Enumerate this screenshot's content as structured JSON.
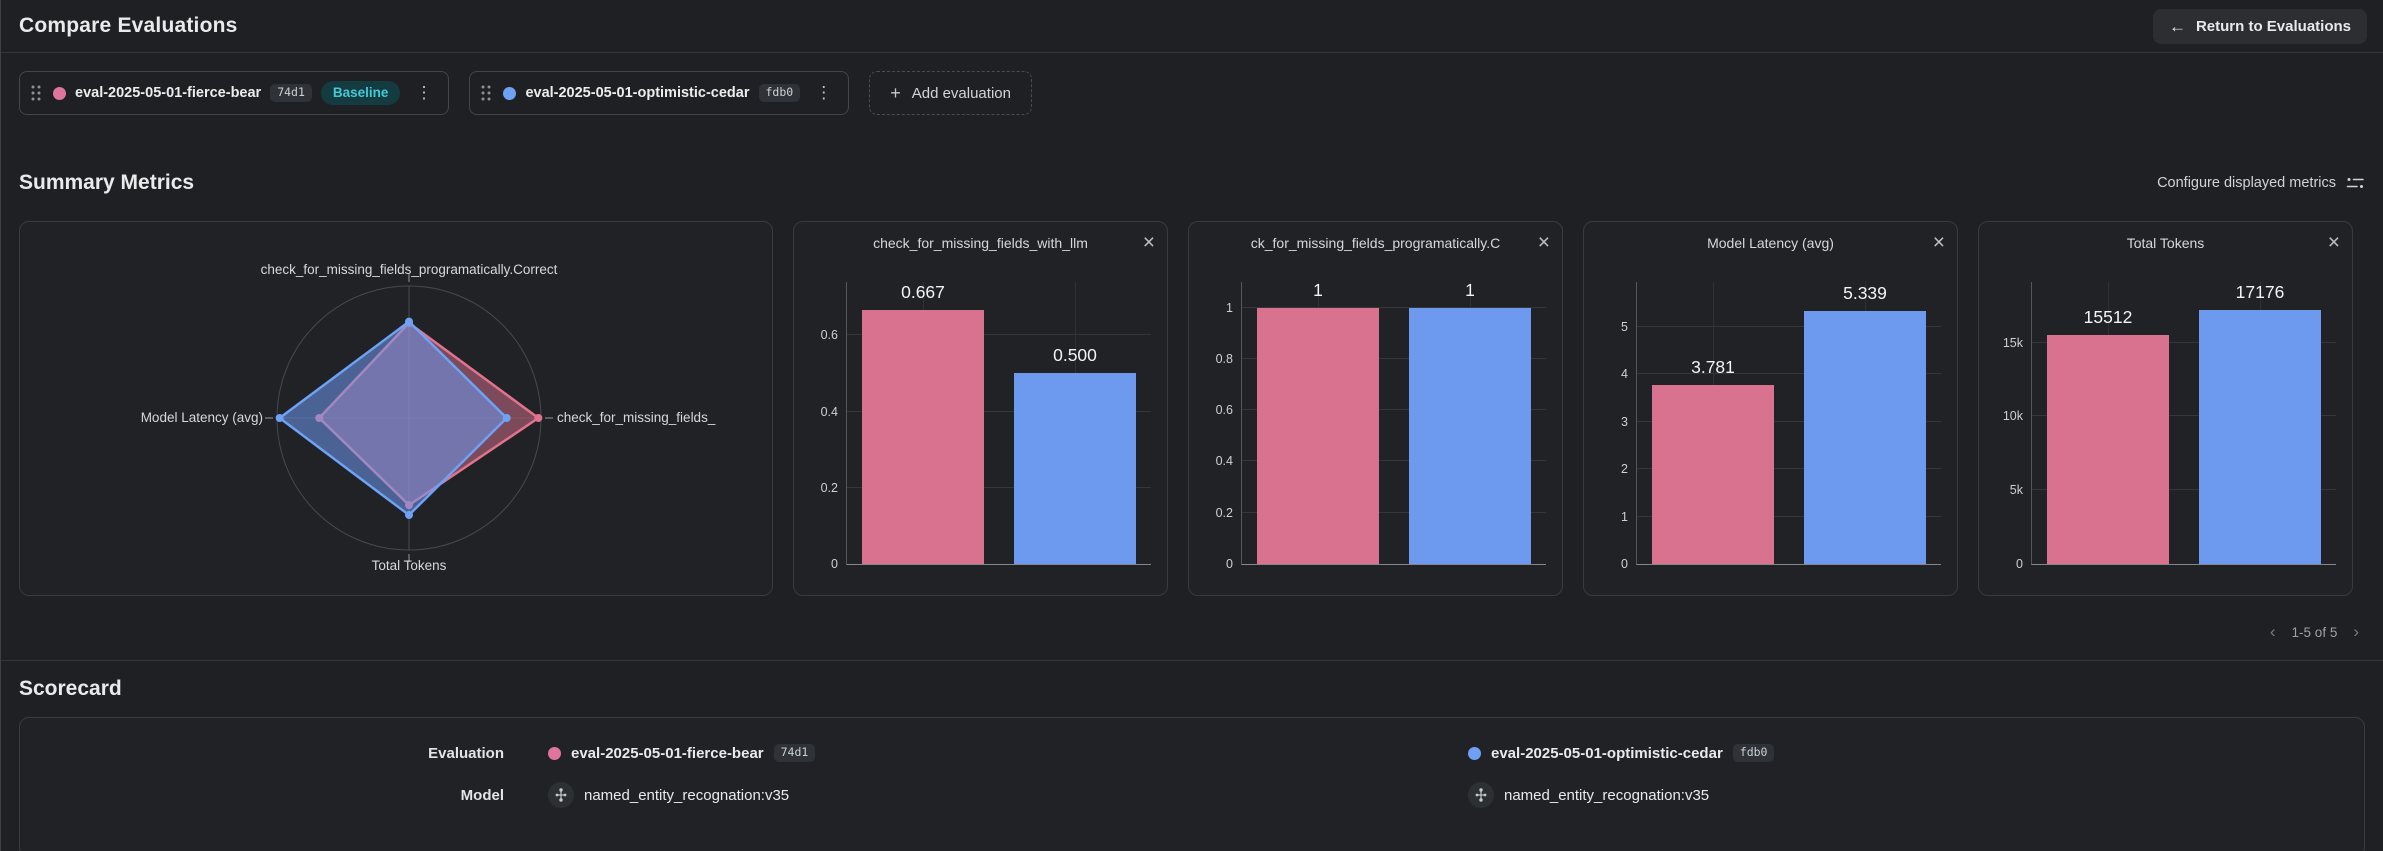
{
  "icons": {
    "back_arrow": "←",
    "add": "+",
    "kebab": "⋮",
    "close": "×",
    "prev": "‹",
    "next": "›"
  },
  "header": {
    "title": "Compare Evaluations",
    "return_button": "Return to Evaluations"
  },
  "toolbar": {
    "add_evaluation": "Add evaluation"
  },
  "evaluations": [
    {
      "name": "eval-2025-05-01-fierce-bear",
      "hash": "74d1",
      "baseline_badge": "Baseline",
      "color": "#e0759c"
    },
    {
      "name": "eval-2025-05-01-optimistic-cedar",
      "hash": "fdb0",
      "color": "#6fa0f3"
    }
  ],
  "summary_metrics": {
    "title": "Summary Metrics",
    "configure_label": "Configure displayed metrics",
    "pagination": {
      "label": "1-5 of 5"
    }
  },
  "scorecard": {
    "title": "Scorecard",
    "row_labels": [
      "Evaluation",
      "Model"
    ],
    "models": [
      "named_entity_recognation:v35",
      "named_entity_recognation:v35"
    ]
  },
  "colors": {
    "series": [
      "#d9728f",
      "#6d99ee"
    ],
    "series_stroke": [
      "#e2738f",
      "#6da2f5"
    ],
    "baseline_bg": "#143b40",
    "baseline_text": "#42c9d8"
  },
  "chart_data": [
    {
      "type": "radar",
      "axes": {
        "top": "check_for_missing_fields_programatically.Correct",
        "right": "check_for_missing_fields_",
        "bottom": "Total Tokens",
        "left": "Model Latency (avg)"
      },
      "series": [
        {
          "name": "eval-2025-05-01-fierce-bear",
          "color": "#d9728f",
          "values": {
            "top": 1,
            "right": 0.667,
            "bottom": 15512,
            "left": 3.781
          },
          "normalized": {
            "top": 0.72,
            "right": 0.98,
            "bottom": 0.66,
            "left": 0.68
          }
        },
        {
          "name": "eval-2025-05-01-optimistic-cedar",
          "color": "#6d99ee",
          "values": {
            "top": 1,
            "right": 0.5,
            "bottom": 17176,
            "left": 5.339
          },
          "normalized": {
            "top": 0.73,
            "right": 0.74,
            "bottom": 0.735,
            "left": 0.98
          }
        }
      ]
    },
    {
      "type": "bar",
      "title": "check_for_missing_fields_with_llm",
      "values": [
        0.667,
        0.5
      ],
      "value_labels": [
        "0.667",
        "0.500"
      ],
      "yticks": [
        {
          "label": "0",
          "v": 0
        },
        {
          "label": "0.2",
          "v": 0.2
        },
        {
          "label": "0.4",
          "v": 0.4
        },
        {
          "label": "0.6",
          "v": 0.6
        }
      ],
      "ymax": 0.74
    },
    {
      "type": "bar",
      "title": "ck_for_missing_fields_programatically.C",
      "values": [
        1,
        1
      ],
      "value_labels": [
        "1",
        "1"
      ],
      "yticks": [
        {
          "label": "0",
          "v": 0
        },
        {
          "label": "0.2",
          "v": 0.2
        },
        {
          "label": "0.4",
          "v": 0.4
        },
        {
          "label": "0.6",
          "v": 0.6
        },
        {
          "label": "0.8",
          "v": 0.8
        },
        {
          "label": "1",
          "v": 1
        }
      ],
      "ymax": 1.1
    },
    {
      "type": "bar",
      "title": "Model Latency (avg)",
      "values": [
        3.781,
        5.339
      ],
      "value_labels": [
        "3.781",
        "5.339"
      ],
      "yticks": [
        {
          "label": "0",
          "v": 0
        },
        {
          "label": "1",
          "v": 1
        },
        {
          "label": "2",
          "v": 2
        },
        {
          "label": "3",
          "v": 3
        },
        {
          "label": "4",
          "v": 4
        },
        {
          "label": "5",
          "v": 5
        }
      ],
      "ymax": 5.95
    },
    {
      "type": "bar",
      "title": "Total Tokens",
      "values": [
        15512,
        17176
      ],
      "value_labels": [
        "15512",
        "17176"
      ],
      "yticks": [
        {
          "label": "0",
          "v": 0
        },
        {
          "label": "5k",
          "v": 5000
        },
        {
          "label": "10k",
          "v": 10000
        },
        {
          "label": "15k",
          "v": 15000
        }
      ],
      "ymax": 19100
    }
  ]
}
